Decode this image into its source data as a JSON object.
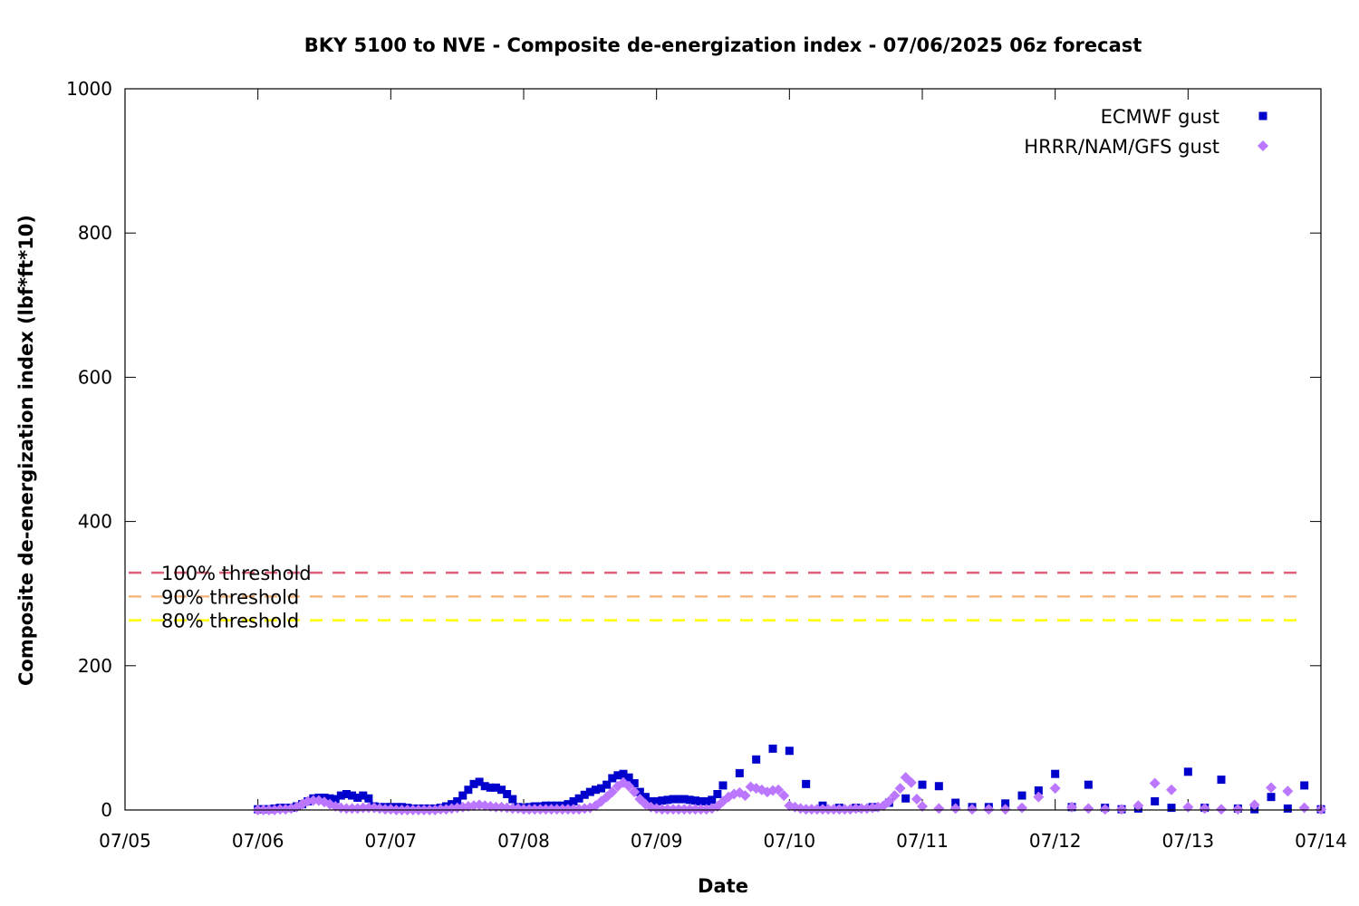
{
  "chart_data": {
    "type": "scatter",
    "title": "BKY 5100 to NVE - Composite de-energization index - 07/06/2025 06z forecast",
    "xlabel": "Date",
    "ylabel": "Composite de-energization index (lbf*ft*10)",
    "xlim": [
      "2025-07-05T00:00",
      "2025-07-14T00:00"
    ],
    "ylim": [
      0,
      1000
    ],
    "x_ticks": [
      "07/05",
      "07/06",
      "07/07",
      "07/08",
      "07/09",
      "07/10",
      "07/11",
      "07/12",
      "07/13",
      "07/14"
    ],
    "y_ticks": [
      0,
      200,
      400,
      600,
      800,
      1000
    ],
    "grid": false,
    "legend_position": "top-right",
    "thresholds": [
      {
        "label": "100% threshold",
        "value": 329,
        "color": "#e0607a"
      },
      {
        "label": "90% threshold",
        "value": 296,
        "color": "#f5b880"
      },
      {
        "label": "80% threshold",
        "value": 263,
        "color": "#ffff00"
      }
    ],
    "series": [
      {
        "name": "ECMWF gust",
        "marker": "square",
        "color": "#0000cc",
        "x": [
          "2025-07-06T00:00",
          "2025-07-06T01:00",
          "2025-07-06T02:00",
          "2025-07-06T03:00",
          "2025-07-06T04:00",
          "2025-07-06T05:00",
          "2025-07-06T06:00",
          "2025-07-06T07:00",
          "2025-07-06T08:00",
          "2025-07-06T09:00",
          "2025-07-06T10:00",
          "2025-07-06T11:00",
          "2025-07-06T12:00",
          "2025-07-06T13:00",
          "2025-07-06T14:00",
          "2025-07-06T15:00",
          "2025-07-06T16:00",
          "2025-07-06T17:00",
          "2025-07-06T18:00",
          "2025-07-06T19:00",
          "2025-07-06T20:00",
          "2025-07-06T21:00",
          "2025-07-06T22:00",
          "2025-07-06T23:00",
          "2025-07-07T00:00",
          "2025-07-07T01:00",
          "2025-07-07T02:00",
          "2025-07-07T03:00",
          "2025-07-07T04:00",
          "2025-07-07T05:00",
          "2025-07-07T06:00",
          "2025-07-07T07:00",
          "2025-07-07T08:00",
          "2025-07-07T09:00",
          "2025-07-07T10:00",
          "2025-07-07T11:00",
          "2025-07-07T12:00",
          "2025-07-07T13:00",
          "2025-07-07T14:00",
          "2025-07-07T15:00",
          "2025-07-07T16:00",
          "2025-07-07T17:00",
          "2025-07-07T18:00",
          "2025-07-07T19:00",
          "2025-07-07T20:00",
          "2025-07-07T21:00",
          "2025-07-07T22:00",
          "2025-07-07T23:00",
          "2025-07-08T00:00",
          "2025-07-08T01:00",
          "2025-07-08T02:00",
          "2025-07-08T03:00",
          "2025-07-08T04:00",
          "2025-07-08T05:00",
          "2025-07-08T06:00",
          "2025-07-08T07:00",
          "2025-07-08T08:00",
          "2025-07-08T09:00",
          "2025-07-08T10:00",
          "2025-07-08T11:00",
          "2025-07-08T12:00",
          "2025-07-08T13:00",
          "2025-07-08T14:00",
          "2025-07-08T15:00",
          "2025-07-08T16:00",
          "2025-07-08T17:00",
          "2025-07-08T18:00",
          "2025-07-08T19:00",
          "2025-07-08T20:00",
          "2025-07-08T21:00",
          "2025-07-08T22:00",
          "2025-07-08T23:00",
          "2025-07-09T00:00",
          "2025-07-09T01:00",
          "2025-07-09T02:00",
          "2025-07-09T03:00",
          "2025-07-09T04:00",
          "2025-07-09T05:00",
          "2025-07-09T06:00",
          "2025-07-09T07:00",
          "2025-07-09T08:00",
          "2025-07-09T09:00",
          "2025-07-09T10:00",
          "2025-07-09T11:00",
          "2025-07-09T12:00",
          "2025-07-09T15:00",
          "2025-07-09T18:00",
          "2025-07-09T21:00",
          "2025-07-10T00:00",
          "2025-07-10T03:00",
          "2025-07-10T06:00",
          "2025-07-10T09:00",
          "2025-07-10T12:00",
          "2025-07-10T15:00",
          "2025-07-10T18:00",
          "2025-07-10T21:00",
          "2025-07-11T00:00",
          "2025-07-11T03:00",
          "2025-07-11T06:00",
          "2025-07-11T09:00",
          "2025-07-11T12:00",
          "2025-07-11T15:00",
          "2025-07-11T18:00",
          "2025-07-11T21:00",
          "2025-07-12T00:00",
          "2025-07-12T03:00",
          "2025-07-12T06:00",
          "2025-07-12T09:00",
          "2025-07-12T12:00",
          "2025-07-12T15:00",
          "2025-07-12T18:00",
          "2025-07-12T21:00",
          "2025-07-13T00:00",
          "2025-07-13T03:00",
          "2025-07-13T06:00",
          "2025-07-13T09:00",
          "2025-07-13T12:00",
          "2025-07-13T15:00",
          "2025-07-13T18:00",
          "2025-07-13T21:00",
          "2025-07-14T00:00"
        ],
        "y": [
          1,
          1,
          1,
          2,
          3,
          3,
          3,
          5,
          8,
          12,
          16,
          17,
          17,
          16,
          15,
          20,
          22,
          20,
          17,
          20,
          16,
          5,
          4,
          4,
          4,
          4,
          4,
          3,
          2,
          2,
          2,
          2,
          2,
          3,
          5,
          8,
          12,
          20,
          28,
          36,
          39,
          33,
          31,
          31,
          28,
          22,
          15,
          4,
          3,
          4,
          5,
          5,
          6,
          6,
          6,
          6,
          8,
          12,
          16,
          21,
          25,
          28,
          30,
          35,
          44,
          48,
          50,
          45,
          37,
          25,
          18,
          12,
          12,
          13,
          14,
          15,
          15,
          15,
          14,
          13,
          12,
          12,
          14,
          22,
          34,
          51,
          70,
          85,
          82,
          36,
          6,
          3,
          3,
          4,
          10,
          16,
          35,
          33,
          10,
          4,
          4,
          9,
          20,
          27,
          50,
          4,
          35,
          3,
          1,
          2,
          12,
          3,
          53,
          3,
          42,
          2,
          1,
          18,
          2,
          34,
          1
        ]
      },
      {
        "name": "HRRR/NAM/GFS gust",
        "marker": "diamond",
        "color": "#bb77ff",
        "x": [
          "2025-07-06T00:00",
          "2025-07-06T01:00",
          "2025-07-06T02:00",
          "2025-07-06T03:00",
          "2025-07-06T04:00",
          "2025-07-06T05:00",
          "2025-07-06T06:00",
          "2025-07-06T07:00",
          "2025-07-06T08:00",
          "2025-07-06T09:00",
          "2025-07-06T10:00",
          "2025-07-06T11:00",
          "2025-07-06T12:00",
          "2025-07-06T13:00",
          "2025-07-06T14:00",
          "2025-07-06T15:00",
          "2025-07-06T16:00",
          "2025-07-06T17:00",
          "2025-07-06T18:00",
          "2025-07-06T19:00",
          "2025-07-06T20:00",
          "2025-07-06T21:00",
          "2025-07-06T22:00",
          "2025-07-06T23:00",
          "2025-07-07T00:00",
          "2025-07-07T01:00",
          "2025-07-07T02:00",
          "2025-07-07T03:00",
          "2025-07-07T04:00",
          "2025-07-07T05:00",
          "2025-07-07T06:00",
          "2025-07-07T07:00",
          "2025-07-07T08:00",
          "2025-07-07T09:00",
          "2025-07-07T10:00",
          "2025-07-07T11:00",
          "2025-07-07T12:00",
          "2025-07-07T13:00",
          "2025-07-07T14:00",
          "2025-07-07T15:00",
          "2025-07-07T16:00",
          "2025-07-07T17:00",
          "2025-07-07T18:00",
          "2025-07-07T19:00",
          "2025-07-07T20:00",
          "2025-07-07T21:00",
          "2025-07-07T22:00",
          "2025-07-07T23:00",
          "2025-07-08T00:00",
          "2025-07-08T01:00",
          "2025-07-08T02:00",
          "2025-07-08T03:00",
          "2025-07-08T04:00",
          "2025-07-08T05:00",
          "2025-07-08T06:00",
          "2025-07-08T07:00",
          "2025-07-08T08:00",
          "2025-07-08T09:00",
          "2025-07-08T10:00",
          "2025-07-08T11:00",
          "2025-07-08T12:00",
          "2025-07-08T13:00",
          "2025-07-08T14:00",
          "2025-07-08T15:00",
          "2025-07-08T16:00",
          "2025-07-08T17:00",
          "2025-07-08T18:00",
          "2025-07-08T19:00",
          "2025-07-08T20:00",
          "2025-07-08T21:00",
          "2025-07-08T22:00",
          "2025-07-08T23:00",
          "2025-07-09T00:00",
          "2025-07-09T01:00",
          "2025-07-09T02:00",
          "2025-07-09T03:00",
          "2025-07-09T04:00",
          "2025-07-09T05:00",
          "2025-07-09T06:00",
          "2025-07-09T07:00",
          "2025-07-09T08:00",
          "2025-07-09T09:00",
          "2025-07-09T10:00",
          "2025-07-09T11:00",
          "2025-07-09T12:00",
          "2025-07-09T13:00",
          "2025-07-09T14:00",
          "2025-07-09T15:00",
          "2025-07-09T16:00",
          "2025-07-09T17:00",
          "2025-07-09T18:00",
          "2025-07-09T19:00",
          "2025-07-09T20:00",
          "2025-07-09T21:00",
          "2025-07-09T22:00",
          "2025-07-09T23:00",
          "2025-07-10T00:00",
          "2025-07-10T01:00",
          "2025-07-10T02:00",
          "2025-07-10T03:00",
          "2025-07-10T04:00",
          "2025-07-10T05:00",
          "2025-07-10T06:00",
          "2025-07-10T07:00",
          "2025-07-10T08:00",
          "2025-07-10T09:00",
          "2025-07-10T10:00",
          "2025-07-10T11:00",
          "2025-07-10T12:00",
          "2025-07-10T13:00",
          "2025-07-10T14:00",
          "2025-07-10T15:00",
          "2025-07-10T16:00",
          "2025-07-10T17:00",
          "2025-07-10T18:00",
          "2025-07-10T19:00",
          "2025-07-10T20:00",
          "2025-07-10T21:00",
          "2025-07-10T22:00",
          "2025-07-10T23:00",
          "2025-07-11T00:00",
          "2025-07-11T03:00",
          "2025-07-11T06:00",
          "2025-07-11T09:00",
          "2025-07-11T12:00",
          "2025-07-11T15:00",
          "2025-07-11T18:00",
          "2025-07-11T21:00",
          "2025-07-12T00:00",
          "2025-07-12T03:00",
          "2025-07-12T06:00",
          "2025-07-12T09:00",
          "2025-07-12T12:00",
          "2025-07-12T15:00",
          "2025-07-12T18:00",
          "2025-07-12T21:00",
          "2025-07-13T00:00",
          "2025-07-13T03:00",
          "2025-07-13T06:00",
          "2025-07-13T09:00",
          "2025-07-13T12:00",
          "2025-07-13T15:00",
          "2025-07-13T18:00",
          "2025-07-13T21:00",
          "2025-07-14T00:00"
        ],
        "y": [
          0,
          0,
          0,
          0,
          1,
          1,
          2,
          4,
          8,
          12,
          13,
          13,
          11,
          8,
          5,
          3,
          2,
          2,
          2,
          3,
          3,
          3,
          2,
          1,
          1,
          0,
          0,
          0,
          0,
          0,
          0,
          0,
          0,
          1,
          1,
          2,
          3,
          4,
          5,
          6,
          7,
          6,
          5,
          4,
          4,
          3,
          2,
          2,
          1,
          1,
          1,
          1,
          1,
          1,
          1,
          1,
          1,
          1,
          1,
          2,
          3,
          6,
          12,
          18,
          25,
          33,
          38,
          33,
          25,
          15,
          8,
          4,
          2,
          1,
          1,
          1,
          1,
          1,
          1,
          1,
          1,
          1,
          2,
          5,
          12,
          18,
          22,
          24,
          20,
          32,
          30,
          28,
          25,
          27,
          28,
          20,
          6,
          4,
          2,
          1,
          1,
          1,
          1,
          1,
          1,
          1,
          1,
          1,
          2,
          2,
          2,
          3,
          4,
          6,
          12,
          20,
          30,
          45,
          38,
          15,
          5,
          2,
          2,
          1,
          1,
          1,
          3,
          18,
          30,
          4,
          2,
          1,
          1,
          6,
          37,
          28,
          4,
          2,
          1,
          1,
          7,
          31,
          26,
          3,
          1
        ]
      }
    ]
  }
}
